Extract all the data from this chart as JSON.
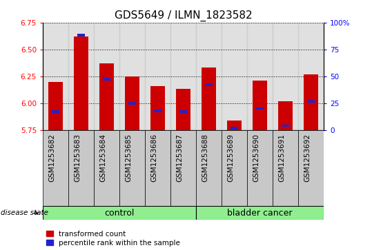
{
  "title": "GDS5649 / ILMN_1823582",
  "samples": [
    "GSM1253682",
    "GSM1253683",
    "GSM1253684",
    "GSM1253685",
    "GSM1253686",
    "GSM1253687",
    "GSM1253688",
    "GSM1253689",
    "GSM1253690",
    "GSM1253691",
    "GSM1253692"
  ],
  "transformed_count": [
    6.2,
    6.62,
    6.37,
    6.25,
    6.16,
    6.13,
    6.33,
    5.84,
    6.21,
    6.02,
    6.27
  ],
  "percentile_rank": [
    17,
    88,
    47,
    25,
    18,
    17,
    42,
    2,
    20,
    4,
    27
  ],
  "ylim_left": [
    5.75,
    6.75
  ],
  "ylim_right": [
    0,
    100
  ],
  "yticks_left": [
    5.75,
    6.0,
    6.25,
    6.5,
    6.75
  ],
  "yticks_right": [
    0,
    25,
    50,
    75,
    100
  ],
  "n_control": 6,
  "n_cancer": 5,
  "bar_color": "#cc0000",
  "blue_color": "#2222cc",
  "bar_base": 5.75,
  "col_bg_color": "#c8c8c8",
  "green_fill": "#90ee90",
  "legend_red_label": "transformed count",
  "legend_blue_label": "percentile rank within the sample",
  "disease_state_label": "disease state",
  "control_label": "control",
  "cancer_label": "bladder cancer",
  "title_fontsize": 11,
  "tick_fontsize": 7.5,
  "group_fontsize": 9
}
